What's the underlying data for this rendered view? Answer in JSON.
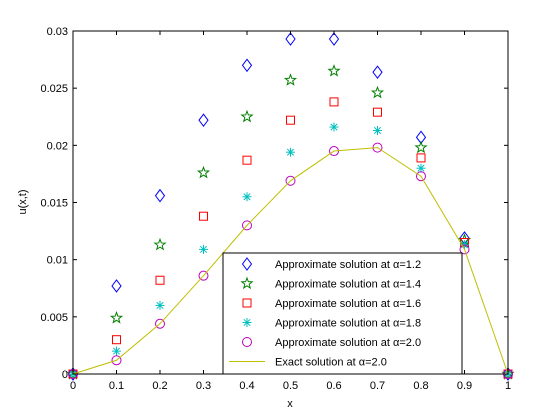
{
  "chart_data": {
    "type": "scatter",
    "title": "",
    "xlabel": "x",
    "ylabel": "u(x,t)",
    "xlim": [
      0,
      1
    ],
    "ylim": [
      0,
      0.03
    ],
    "xticks": [
      0,
      0.1,
      0.2,
      0.3,
      0.4,
      0.5,
      0.6,
      0.7,
      0.8,
      0.9,
      1
    ],
    "xtick_labels": [
      "0",
      "0.1",
      "0.2",
      "0.3",
      "0.4",
      "0.5",
      "0.6",
      "0.7",
      "0.8",
      "0.9",
      "1"
    ],
    "yticks": [
      0,
      0.005,
      0.01,
      0.015,
      0.02,
      0.025,
      0.03
    ],
    "ytick_labels": [
      "0",
      "0.005",
      "0.01",
      "0.015",
      "0.02",
      "0.025",
      "0.03"
    ],
    "grid": false,
    "legend_position": "bottom-right",
    "x": [
      0,
      0.1,
      0.2,
      0.3,
      0.4,
      0.5,
      0.6,
      0.7,
      0.8,
      0.9,
      1.0
    ],
    "series": [
      {
        "name": "Approximate solution at α=1.2",
        "marker": "diamond",
        "color": "#0000ff",
        "values": [
          0,
          0.0077,
          0.0156,
          0.0222,
          0.027,
          0.0293,
          0.0293,
          0.0264,
          0.0207,
          0.0119,
          0
        ]
      },
      {
        "name": "Approximate solution at α=1.4",
        "marker": "star",
        "color": "#008000",
        "values": [
          0,
          0.0049,
          0.0113,
          0.0176,
          0.0225,
          0.0257,
          0.0265,
          0.0246,
          0.0198,
          0.0117,
          0
        ]
      },
      {
        "name": "Approximate solution at α=1.6",
        "marker": "square",
        "color": "#ff0000",
        "values": [
          0,
          0.003,
          0.0082,
          0.0138,
          0.0187,
          0.0222,
          0.0238,
          0.0229,
          0.0189,
          0.0115,
          0
        ]
      },
      {
        "name": "Approximate solution at α=1.8",
        "marker": "asterisk",
        "color": "#00bfbf",
        "values": [
          0,
          0.002,
          0.006,
          0.0109,
          0.0155,
          0.0194,
          0.0216,
          0.0213,
          0.018,
          0.0113,
          0
        ]
      },
      {
        "name": "Approximate solution at α=2.0",
        "marker": "circle",
        "color": "#bf00bf",
        "values": [
          0,
          0.0012,
          0.0044,
          0.0086,
          0.013,
          0.0169,
          0.0195,
          0.0198,
          0.0173,
          0.0109,
          0
        ]
      },
      {
        "name": "Exact solution at α=2.0",
        "marker": "line",
        "color": "#bfbf00",
        "values": [
          0,
          0.0012,
          0.0044,
          0.0086,
          0.013,
          0.0169,
          0.0195,
          0.0198,
          0.0173,
          0.0109,
          0
        ]
      }
    ]
  }
}
